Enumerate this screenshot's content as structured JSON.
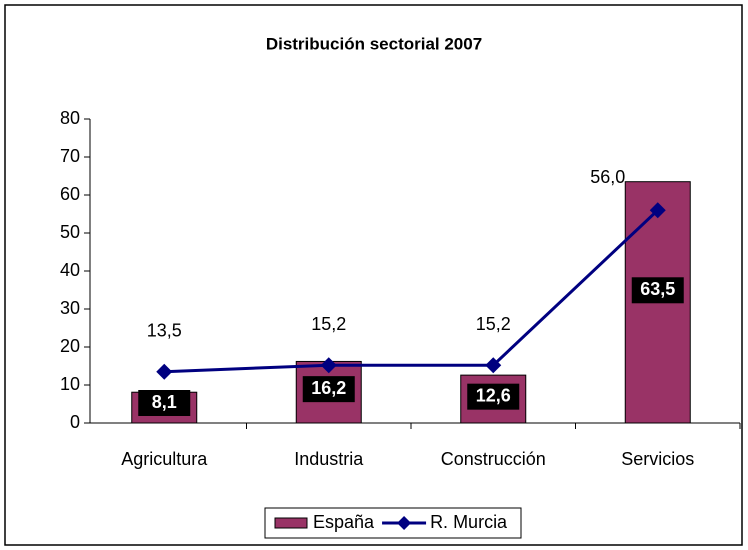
{
  "chart_data": {
    "type": "bar_line",
    "title": "Distribución sectorial 2007",
    "categories": [
      "Agricultura",
      "Industria",
      "Construcción",
      "Servicios"
    ],
    "series": [
      {
        "name": "España",
        "type": "bar",
        "color": "#993366",
        "values": [
          8.1,
          16.2,
          12.6,
          63.5
        ],
        "value_labels": [
          "8,1",
          "16,2",
          "12,6",
          "63,5"
        ]
      },
      {
        "name": "R. Murcia",
        "type": "line",
        "color": "#000080",
        "values": [
          13.5,
          15.2,
          15.2,
          56.0
        ],
        "value_labels": [
          "13,5",
          "15,2",
          "15,2",
          "56,0"
        ]
      }
    ],
    "ylim": [
      0,
      80
    ],
    "yticks": [
      0,
      10,
      20,
      30,
      40,
      50,
      60,
      70,
      80
    ],
    "grid": false,
    "legend": "bottom"
  }
}
